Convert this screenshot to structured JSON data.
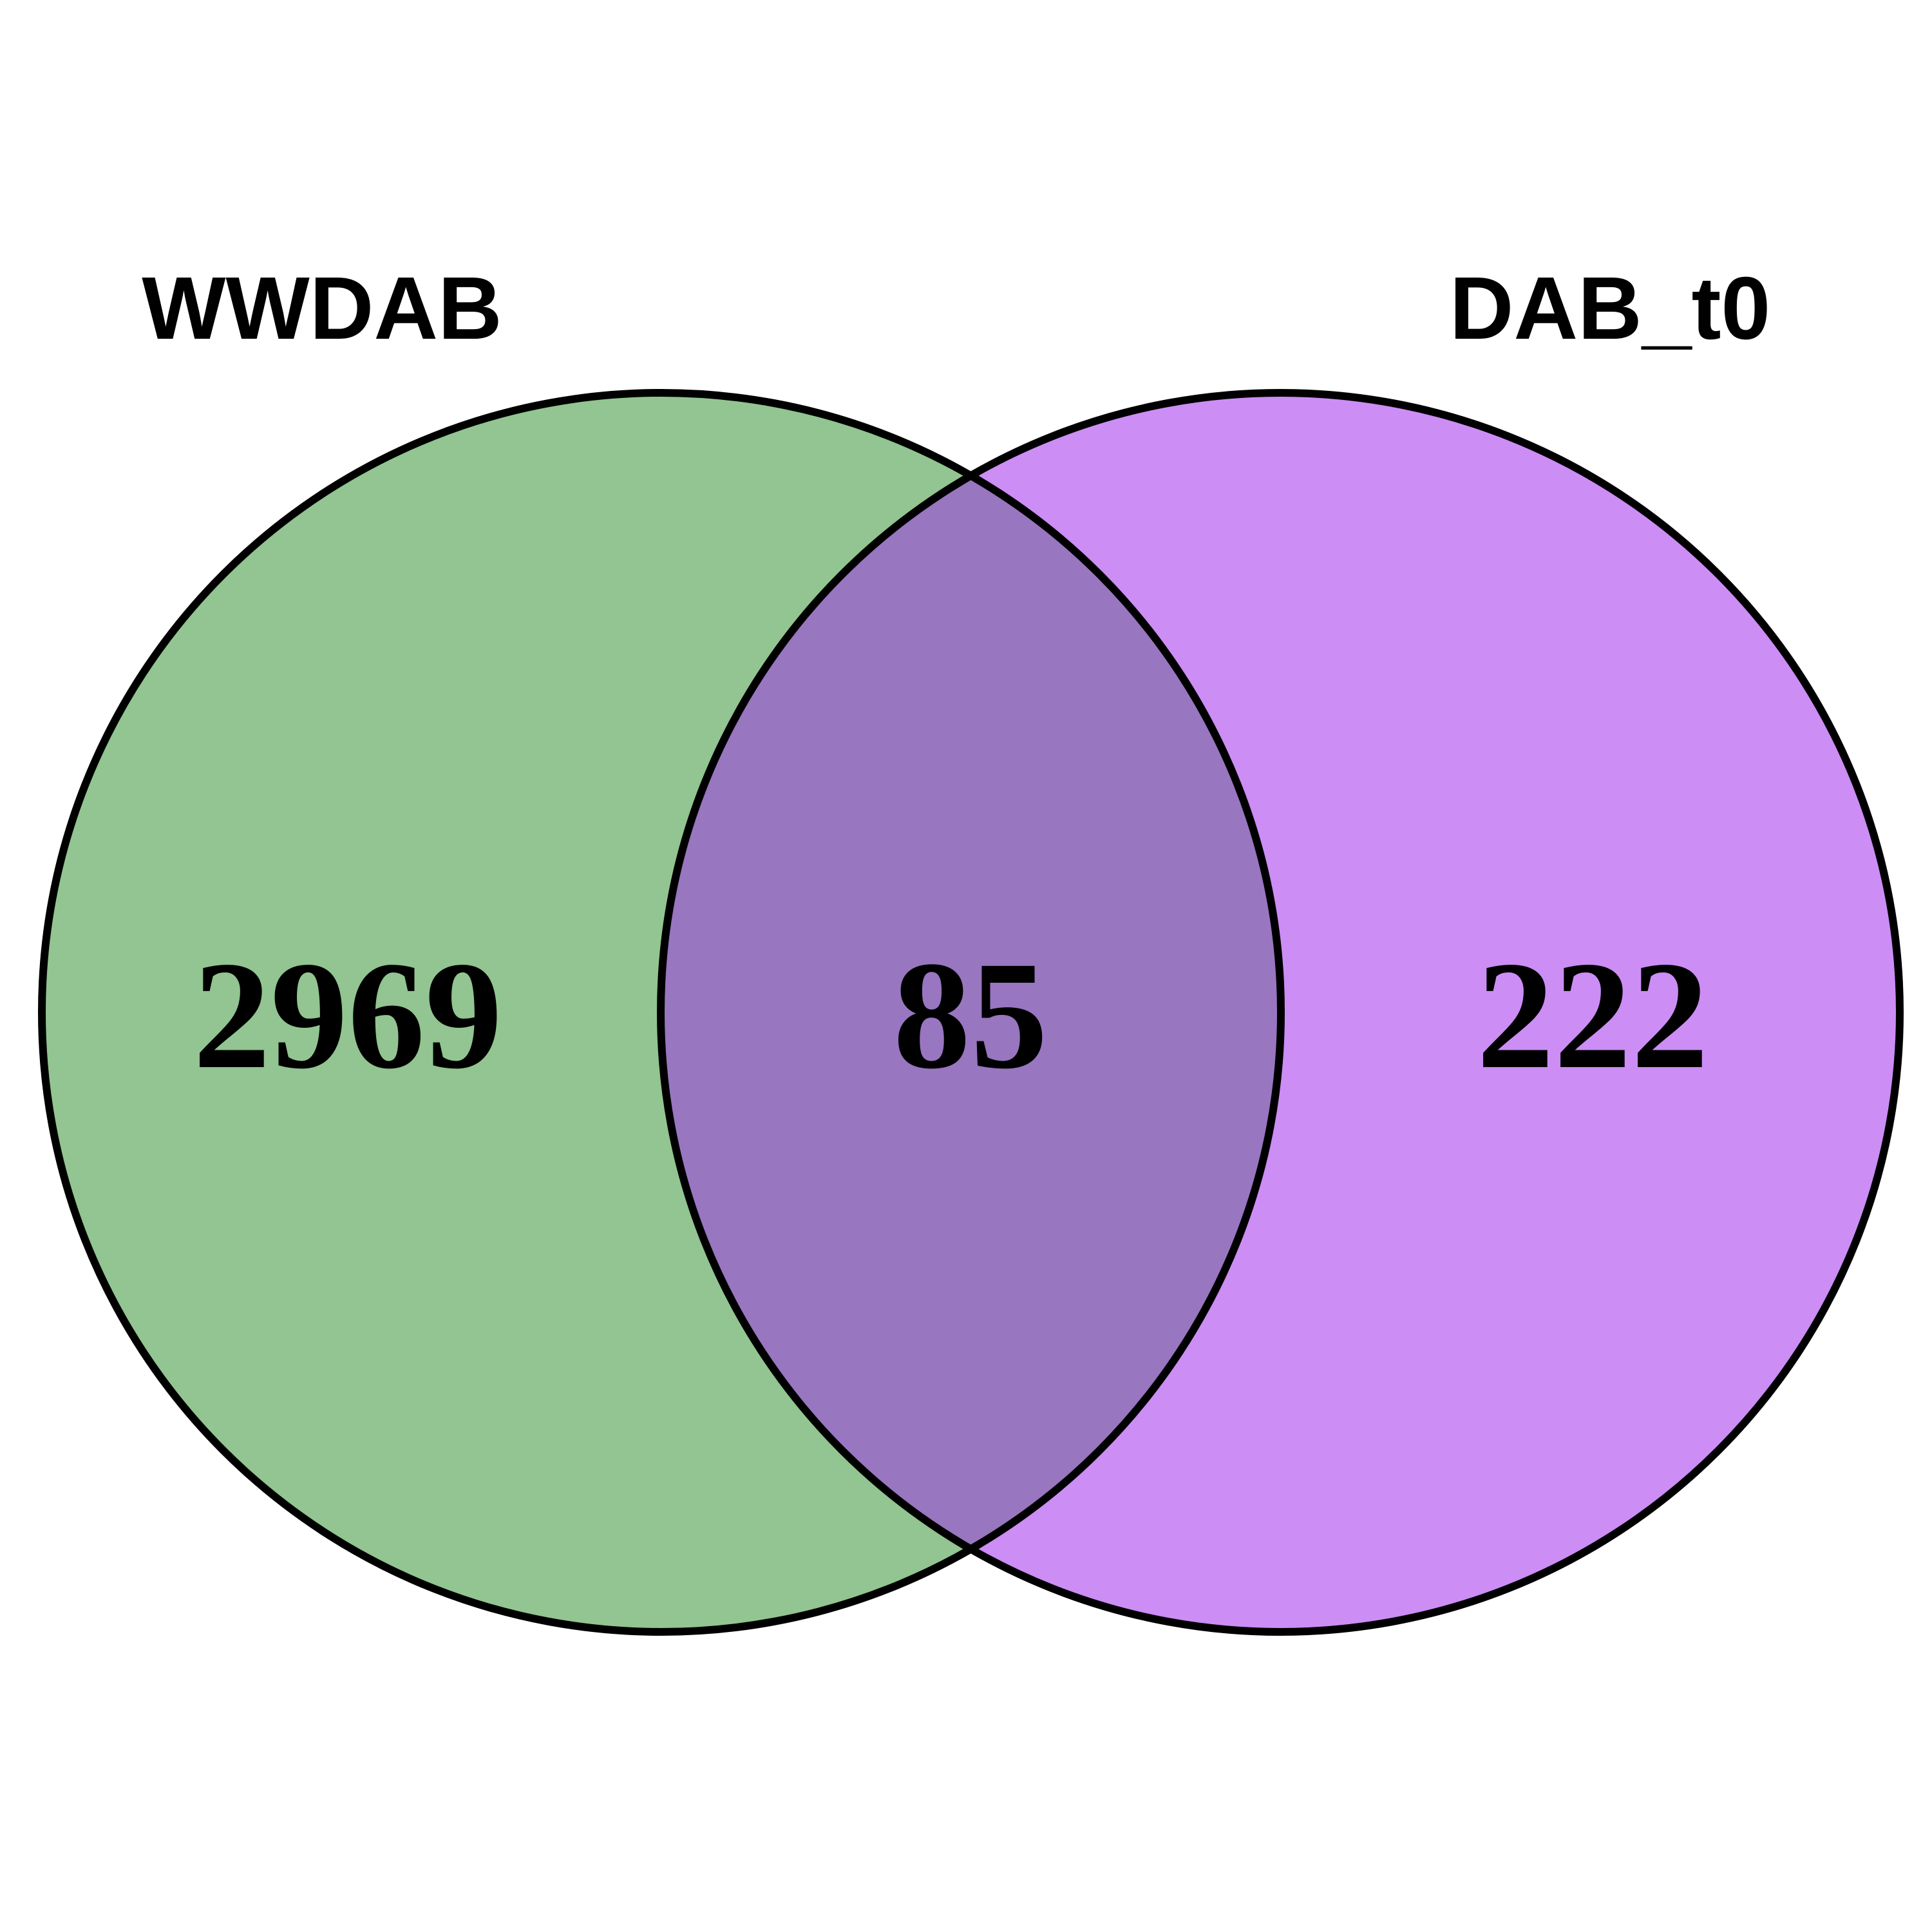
{
  "venn": {
    "sets": [
      {
        "name": "WWDAB",
        "color": "#92C591"
      },
      {
        "name": "DAB_t0",
        "color": "#CC8DF5"
      }
    ],
    "overlap_color": "#9876C0",
    "outline_color": "#000000",
    "counts": {
      "WWDAB_only": "2969",
      "intersection": "85",
      "DAB_t0_only": "222"
    }
  }
}
